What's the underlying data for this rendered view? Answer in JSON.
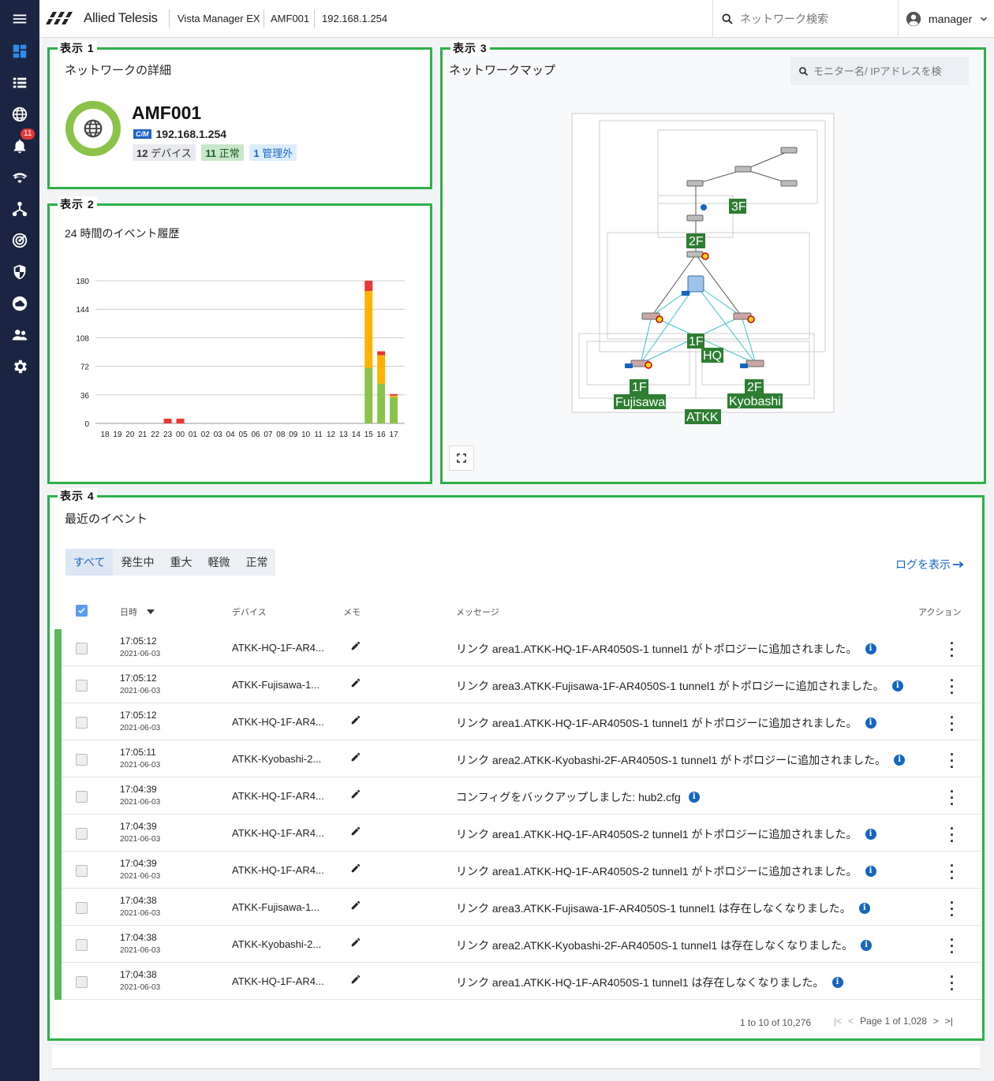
{
  "topbar": {
    "brand": "Allied Telesis",
    "app_name": "Vista Manager EX",
    "area": "AMF001",
    "ip": "192.168.1.254",
    "search_placeholder": "ネットワーク検索",
    "user": "manager"
  },
  "sidebar": {
    "alert_badge": "11",
    "items": [
      "menu-icon",
      "dashboard-icon",
      "list-icon",
      "globe-icon",
      "bell-icon",
      "wifi-icon",
      "topology-icon",
      "radar-icon",
      "shield-icon",
      "cloud-icon",
      "users-icon",
      "gear-icon"
    ]
  },
  "panel1": {
    "tag": "表示 1",
    "title": "ネットワークの詳細",
    "name": "AMF001",
    "cm_badge": "C/M",
    "ip": "192.168.1.254",
    "chips": [
      {
        "count": "12",
        "label": "デバイス"
      },
      {
        "count": "11",
        "label": "正常"
      },
      {
        "count": "1",
        "label": "管理外"
      }
    ]
  },
  "panel2": {
    "tag": "表示 2",
    "title": "24 時間のイベント履歴"
  },
  "chart_data": {
    "type": "bar",
    "stacked": true,
    "title": "24 時間のイベント履歴",
    "categories": [
      "18",
      "19",
      "20",
      "21",
      "22",
      "23",
      "00",
      "01",
      "02",
      "03",
      "04",
      "05",
      "06",
      "07",
      "08",
      "09",
      "10",
      "11",
      "12",
      "13",
      "14",
      "15",
      "16",
      "17"
    ],
    "series": [
      {
        "color": "#8bc34a",
        "values": [
          0,
          0,
          0,
          0,
          0,
          0,
          0,
          0,
          0,
          0,
          0,
          0,
          0,
          0,
          0,
          0,
          0,
          0,
          0,
          0,
          0,
          70,
          50,
          33
        ]
      },
      {
        "color": "#ffb300",
        "values": [
          0,
          0,
          0,
          0,
          0,
          0,
          0,
          0,
          0,
          0,
          0,
          0,
          0,
          0,
          0,
          0,
          0,
          0,
          0,
          0,
          0,
          97,
          36,
          2
        ]
      },
      {
        "color": "#e53935",
        "values": [
          0,
          0,
          0,
          0,
          0,
          6,
          6,
          0,
          0,
          0,
          0,
          0,
          0,
          0,
          0,
          0,
          0,
          0,
          0,
          0,
          0,
          13,
          5,
          2
        ]
      }
    ],
    "ylim": [
      0,
      180
    ],
    "yticks": [
      "180",
      "144",
      "108",
      "72",
      "36",
      "0"
    ],
    "grid": true
  },
  "panel3": {
    "tag": "表示 3",
    "title": "ネットワークマップ",
    "search_placeholder": "モニター名/ IPアドレスを検",
    "labels": [
      "3F",
      "2F",
      "1F",
      "HQ",
      "1F",
      "Fujisawa",
      "2F",
      "Kyobashi",
      "ATKK"
    ]
  },
  "panel4": {
    "tag": "表示 4",
    "title": "最近のイベント",
    "tabs": [
      "すべて",
      "発生中",
      "重大",
      "軽微",
      "正常"
    ],
    "log_link": "ログを表示",
    "columns": {
      "datetime": "日時",
      "device": "デバイス",
      "memo": "メモ",
      "message": "メッセージ",
      "action": "アクション"
    },
    "rows": [
      {
        "time": "17:05:12",
        "date": "2021-06-03",
        "device": "ATKK-HQ-1F-AR4...",
        "message": "リンク area1.ATKK-HQ-1F-AR4050S-1 tunnel1 がトポロジーに追加されました。"
      },
      {
        "time": "17:05:12",
        "date": "2021-06-03",
        "device": "ATKK-Fujisawa-1...",
        "message": "リンク area3.ATKK-Fujisawa-1F-AR4050S-1 tunnel1 がトポロジーに追加されました。"
      },
      {
        "time": "17:05:12",
        "date": "2021-06-03",
        "device": "ATKK-HQ-1F-AR4...",
        "message": "リンク area1.ATKK-HQ-1F-AR4050S-1 tunnel1 がトポロジーに追加されました。"
      },
      {
        "time": "17:05:11",
        "date": "2021-06-03",
        "device": "ATKK-Kyobashi-2...",
        "message": "リンク area2.ATKK-Kyobashi-2F-AR4050S-1 tunnel1 がトポロジーに追加されました。"
      },
      {
        "time": "17:04:39",
        "date": "2021-06-03",
        "device": "ATKK-HQ-1F-AR4...",
        "message": "コンフィグをバックアップしました: hub2.cfg"
      },
      {
        "time": "17:04:39",
        "date": "2021-06-03",
        "device": "ATKK-HQ-1F-AR4...",
        "message": "リンク area1.ATKK-HQ-1F-AR4050S-2 tunnel1 がトポロジーに追加されました。"
      },
      {
        "time": "17:04:39",
        "date": "2021-06-03",
        "device": "ATKK-HQ-1F-AR4...",
        "message": "リンク area1.ATKK-HQ-1F-AR4050S-2 tunnel1 がトポロジーに追加されました。"
      },
      {
        "time": "17:04:38",
        "date": "2021-06-03",
        "device": "ATKK-Fujisawa-1...",
        "message": "リンク area3.ATKK-Fujisawa-1F-AR4050S-1 tunnel1 は存在しなくなりました。"
      },
      {
        "time": "17:04:38",
        "date": "2021-06-03",
        "device": "ATKK-Kyobashi-2...",
        "message": "リンク area2.ATKK-Kyobashi-2F-AR4050S-1 tunnel1 は存在しなくなりました。"
      },
      {
        "time": "17:04:38",
        "date": "2021-06-03",
        "device": "ATKK-HQ-1F-AR4...",
        "message": "リンク area1.ATKK-HQ-1F-AR4050S-1 tunnel1 は存在しなくなりました。"
      }
    ],
    "pagination": {
      "range": "1 to 10 of 10,276",
      "page": "Page 1 of 1,028"
    }
  },
  "colors": {
    "panel_border": "#2db14a",
    "sidebar": "#1b2541",
    "accent": "#1a66c9",
    "status_ok": "#5cb85c"
  }
}
